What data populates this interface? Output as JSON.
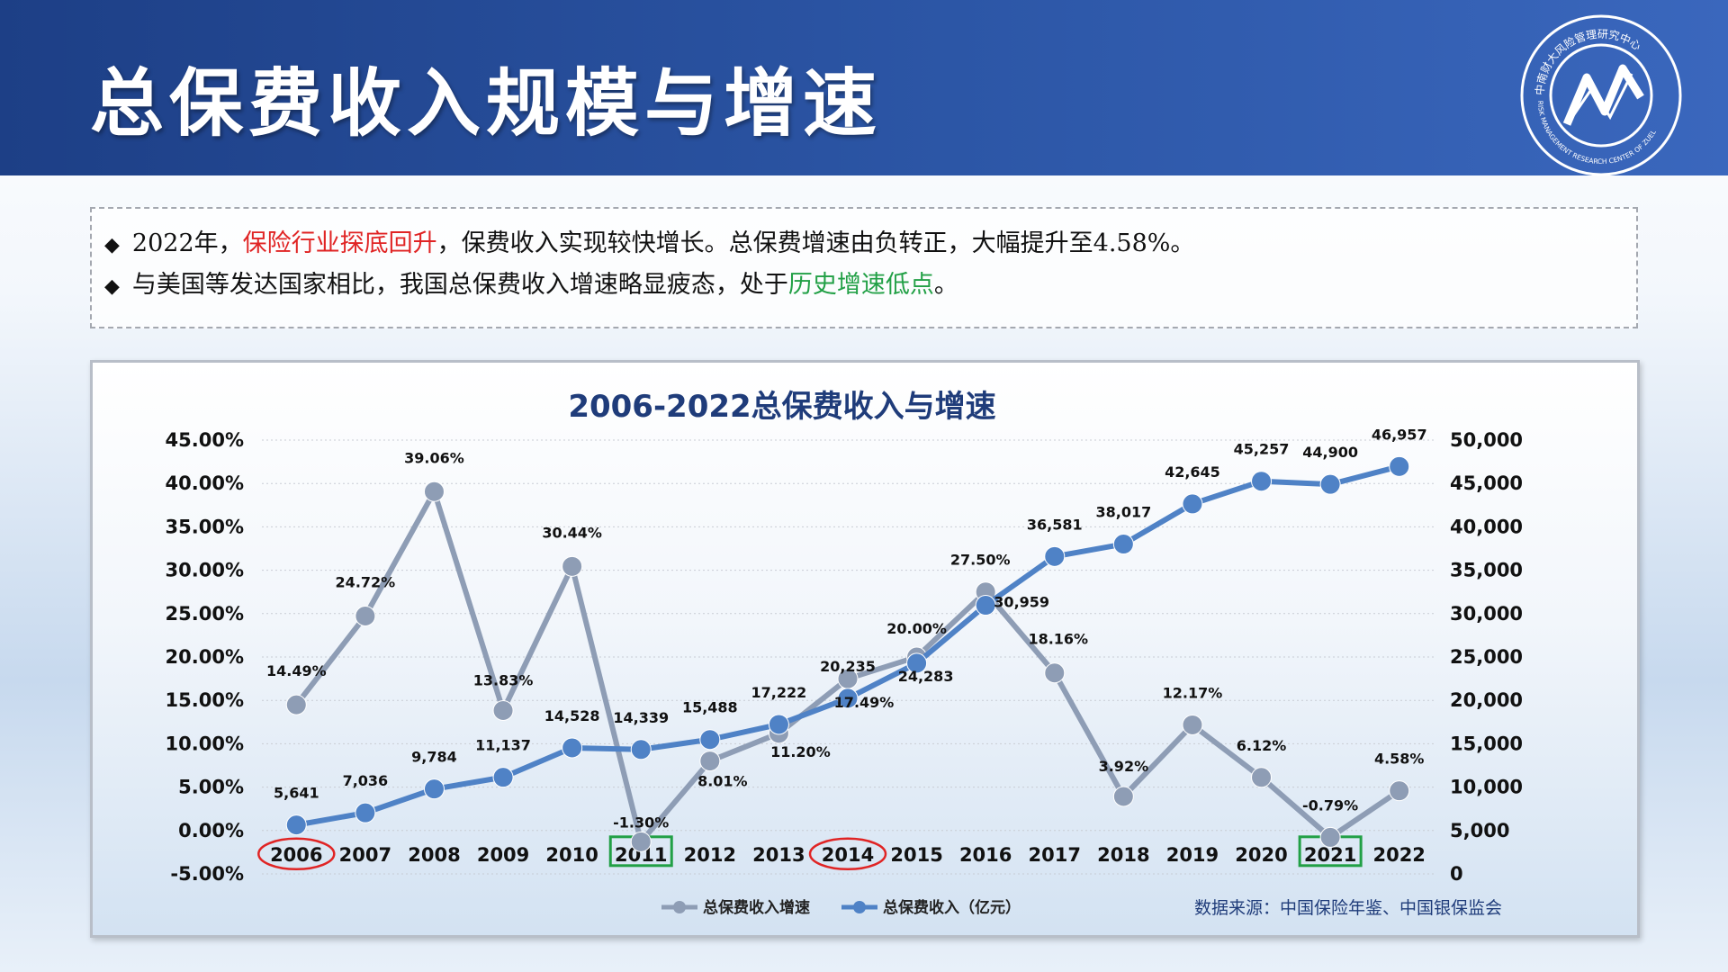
{
  "header": {
    "title": "总保费收入规模与增速",
    "logo_text_top": "中南财大风险管理研究中心",
    "logo_text_bottom": "RISK MANAGEMENT RESEARCH CENTER OF ZUEL"
  },
  "notes": [
    {
      "parts": [
        {
          "text": "2022年，",
          "style": "normal"
        },
        {
          "text": "保险行业探底回升",
          "style": "red"
        },
        {
          "text": "，保费收入实现较快增长。总保费增速由负转正，大幅提升至4.58%。",
          "style": "normal"
        }
      ]
    },
    {
      "parts": [
        {
          "text": "与美国等发达国家相比，我国总保费收入增速略显疲态，处于",
          "style": "normal"
        },
        {
          "text": "历史增速低点",
          "style": "green"
        },
        {
          "text": "。",
          "style": "normal"
        }
      ]
    }
  ],
  "chart_data": {
    "type": "line",
    "title": "2006-2022总保费收入与增速",
    "categories": [
      "2006",
      "2007",
      "2008",
      "2009",
      "2010",
      "2011",
      "2012",
      "2013",
      "2014",
      "2015",
      "2016",
      "2017",
      "2018",
      "2019",
      "2020",
      "2021",
      "2022"
    ],
    "series": [
      {
        "name": "总保费收入增速",
        "axis": "left",
        "color": "#8e9db5",
        "values": [
          14.49,
          24.72,
          39.06,
          13.83,
          30.44,
          -1.3,
          8.01,
          11.2,
          17.49,
          20.0,
          27.5,
          18.16,
          3.92,
          12.17,
          6.12,
          -0.79,
          4.58
        ],
        "labels": [
          "14.49%",
          "24.72%",
          "39.06%",
          "13.83%",
          "30.44%",
          "-1.30%",
          "8.01%",
          "11.20%",
          "17.49%",
          "20.00%",
          "27.50%",
          "18.16%",
          "3.92%",
          "12.17%",
          "6.12%",
          "-0.79%",
          "4.58%"
        ]
      },
      {
        "name": "总保费收入（亿元）",
        "axis": "right",
        "color": "#4f82c6",
        "values": [
          5641,
          7036,
          9784,
          11137,
          14528,
          14339,
          15488,
          17222,
          20235,
          24283,
          30959,
          36581,
          38017,
          42645,
          45257,
          44900,
          46957
        ],
        "labels": [
          "5,641",
          "7,036",
          "9,784",
          "11,137",
          "14,528",
          "14,339",
          "15,488",
          "17,222",
          "20,235",
          "24,283",
          "30,959",
          "36,581",
          "38,017",
          "42,645",
          "45,257",
          "44,900",
          "46,957"
        ]
      }
    ],
    "y_left": {
      "min": -5,
      "max": 45,
      "step": 5,
      "ticks": [
        "-5.00%",
        "0.00%",
        "5.00%",
        "10.00%",
        "15.00%",
        "20.00%",
        "25.00%",
        "30.00%",
        "35.00%",
        "40.00%",
        "45.00%"
      ]
    },
    "y_right": {
      "min": 0,
      "max": 50000,
      "step": 5000,
      "ticks": [
        "0",
        "5,000",
        "10,000",
        "15,000",
        "20,000",
        "25,000",
        "30,000",
        "35,000",
        "40,000",
        "45,000",
        "50,000"
      ]
    },
    "grid": true,
    "legend_position": "bottom",
    "legend": [
      "总保费收入增速",
      "总保费收入（亿元）"
    ],
    "highlight_red_circle": [
      "2006",
      "2014"
    ],
    "highlight_green_box": [
      "2011",
      "2021"
    ],
    "source": "数据来源：中国保险年鉴、中国银保监会"
  }
}
